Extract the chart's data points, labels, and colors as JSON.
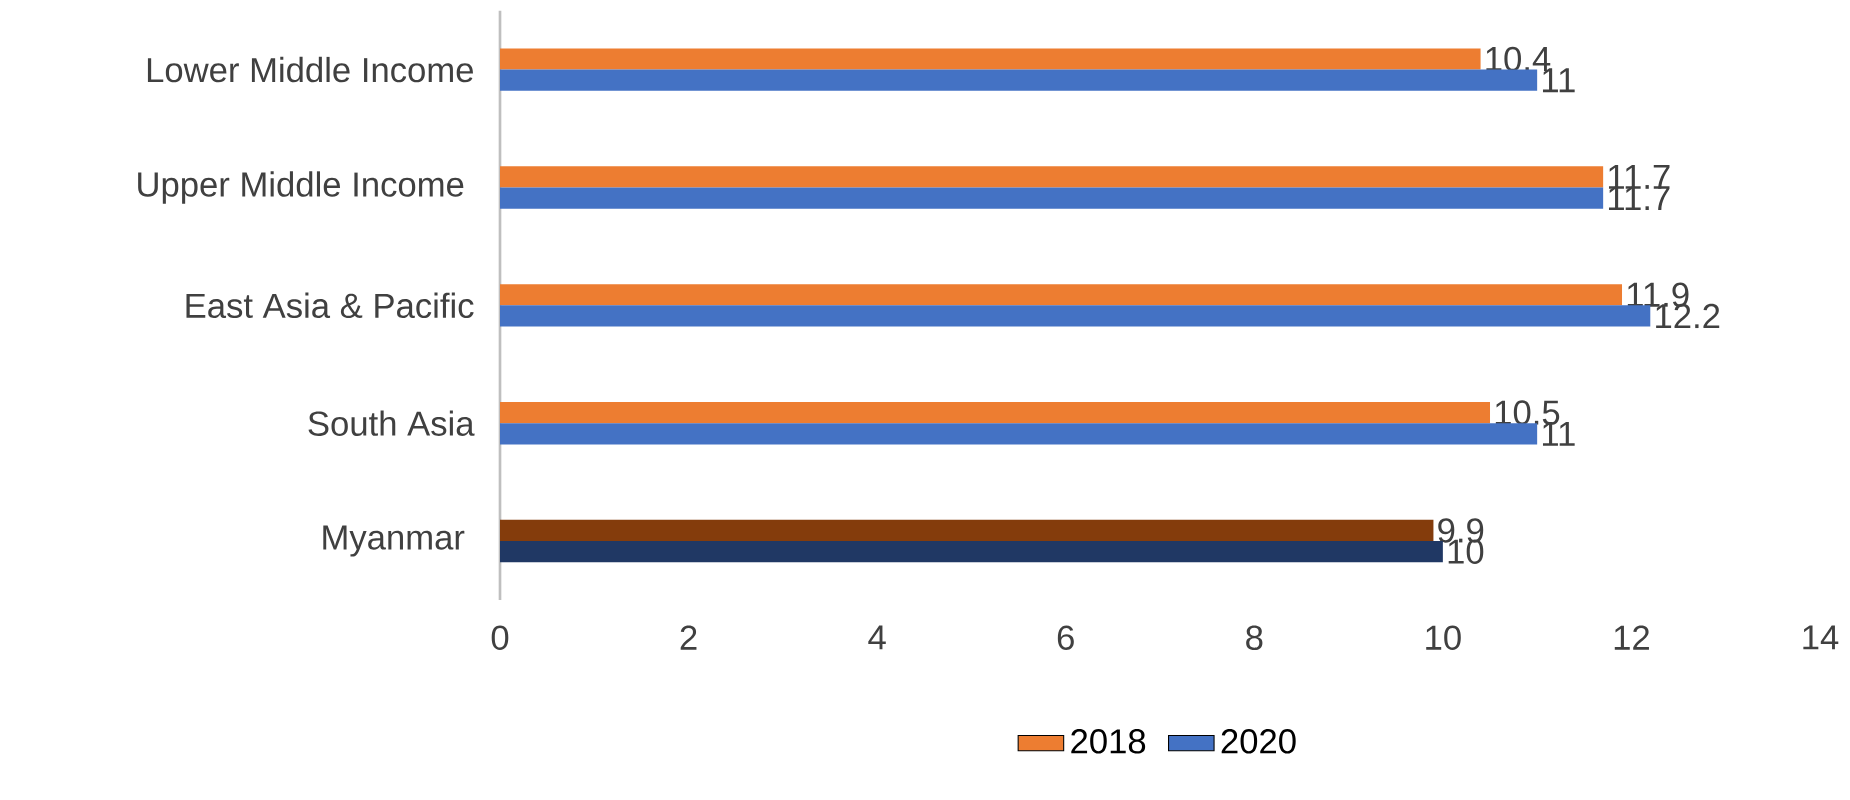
{
  "chart_data": {
    "type": "bar",
    "orientation": "horizontal",
    "categories": [
      "Lower Middle Income",
      "Upper Middle Income ",
      "East Asia & Pacific",
      "South Asia",
      "Myanmar "
    ],
    "series": [
      {
        "name": "2018",
        "color": "#ed7d31",
        "colors": [
          "#ed7d31",
          "#ed7d31",
          "#ed7d31",
          "#ed7d31",
          "#843c0c"
        ],
        "values": [
          10.4,
          11.7,
          11.9,
          10.5,
          9.9
        ]
      },
      {
        "name": "2020",
        "color": "#4472c4",
        "colors": [
          "#4472c4",
          "#4472c4",
          "#4472c4",
          "#4472c4",
          "#203864"
        ],
        "values": [
          11,
          11.7,
          12.2,
          11,
          10
        ]
      }
    ],
    "xlim": [
      0,
      14
    ],
    "xticks": [
      0,
      2,
      4,
      6,
      8,
      10,
      12,
      14
    ],
    "data_labels": true,
    "legend": "bottom",
    "grid": false
  }
}
